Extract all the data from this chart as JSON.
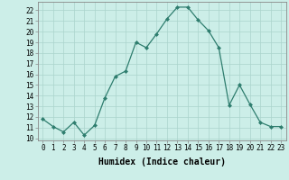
{
  "x": [
    0,
    1,
    2,
    3,
    4,
    5,
    6,
    7,
    8,
    9,
    10,
    11,
    12,
    13,
    14,
    15,
    16,
    17,
    18,
    19,
    20,
    21,
    22,
    23
  ],
  "y": [
    11.8,
    11.1,
    10.6,
    11.5,
    10.3,
    11.2,
    13.8,
    15.8,
    16.3,
    19.0,
    18.5,
    19.8,
    21.2,
    22.3,
    22.3,
    21.1,
    20.1,
    18.5,
    13.1,
    15.0,
    13.2,
    11.5,
    11.1,
    11.1
  ],
  "line_color": "#2e7d6e",
  "marker": "D",
  "markersize": 2.0,
  "linewidth": 0.9,
  "xlabel": "Humidex (Indice chaleur)",
  "xlabel_fontsize": 7,
  "xlabel_fontweight": "bold",
  "xlim": [
    -0.5,
    23.5
  ],
  "ylim": [
    9.8,
    22.8
  ],
  "yticks": [
    10,
    11,
    12,
    13,
    14,
    15,
    16,
    17,
    18,
    19,
    20,
    21,
    22
  ],
  "xticks": [
    0,
    1,
    2,
    3,
    4,
    5,
    6,
    7,
    8,
    9,
    10,
    11,
    12,
    13,
    14,
    15,
    16,
    17,
    18,
    19,
    20,
    21,
    22,
    23
  ],
  "bg_color": "#cceee8",
  "grid_color": "#aad4cc",
  "tick_fontsize": 5.5
}
